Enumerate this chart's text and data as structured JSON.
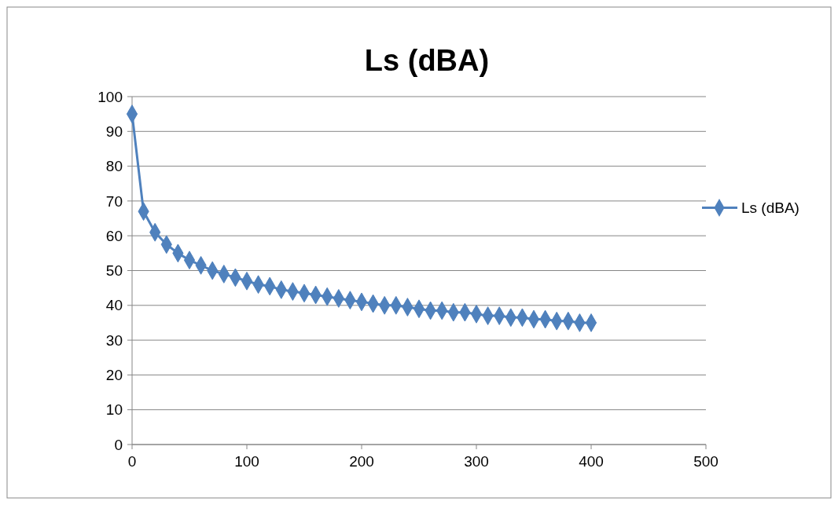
{
  "chart_data": {
    "type": "line",
    "title": "Ls (dBA)",
    "x": [
      0,
      10,
      20,
      30,
      40,
      50,
      60,
      70,
      80,
      90,
      100,
      110,
      120,
      130,
      140,
      150,
      160,
      170,
      180,
      190,
      200,
      210,
      220,
      230,
      240,
      250,
      260,
      270,
      280,
      290,
      300,
      310,
      320,
      330,
      340,
      350,
      360,
      370,
      380,
      390,
      400
    ],
    "series": [
      {
        "name": "Ls (dBA)",
        "color": "#4f81bd",
        "values": [
          95,
          67,
          61,
          57.5,
          55,
          53,
          51.5,
          50,
          49,
          48,
          47,
          46,
          45.5,
          44.5,
          44,
          43.5,
          43,
          42.5,
          42,
          41.5,
          41,
          40.5,
          40,
          40,
          39.5,
          39,
          38.5,
          38.5,
          38,
          38,
          37.5,
          37,
          37,
          36.5,
          36.5,
          36,
          36,
          35.5,
          35.5,
          35,
          35
        ]
      }
    ],
    "xlim": [
      0,
      500
    ],
    "xticks": [
      0,
      100,
      200,
      300,
      400,
      500
    ],
    "ylim": [
      0,
      100
    ],
    "yticks": [
      0,
      10,
      20,
      30,
      40,
      50,
      60,
      70,
      80,
      90,
      100
    ],
    "grid": "y",
    "legend": "right",
    "marker": "diamond",
    "line_style": "solid"
  }
}
